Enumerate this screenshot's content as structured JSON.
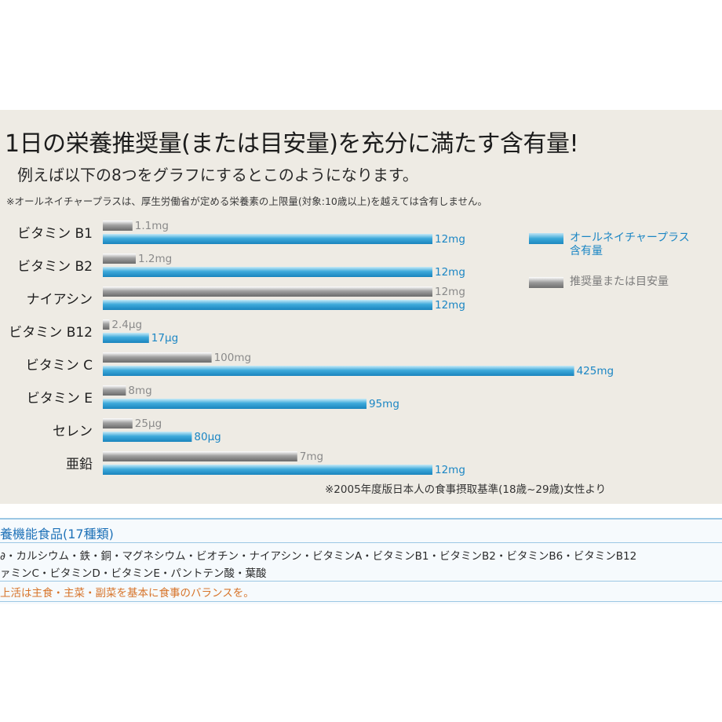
{
  "header": {
    "title": "1日の栄養推奨量(または目安量)を充分に満たす含有量!",
    "subtitle": "例えば以下の8つをグラフにするとこのようになります。",
    "note": "※オールネイチャープラスは、厚生労働省が定める栄養素の上限量(対象:10歳以上)を越えては含有しません。"
  },
  "legend": {
    "blue_label_line1": "オールネイチャープラス",
    "blue_label_line2": "含有量",
    "gray_label": "推奨量または目安量"
  },
  "source_note": "※2005年度版日本人の食事摂取基準(18歳~29歳)女性より",
  "chart_data": {
    "type": "bar",
    "orientation": "horizontal",
    "categories": [
      "ビタミン B1",
      "ビタミン B2",
      "ナイアシン",
      "ビタミン B12",
      "ビタミン C",
      "ビタミン E",
      "セレン",
      "亜鉛"
    ],
    "series": [
      {
        "name": "推奨量または目安量",
        "color": "#8c8c8c",
        "labels": [
          "1.1mg",
          "1.2mg",
          "12mg",
          "2.4μg",
          "100mg",
          "8mg",
          "25μg",
          "7mg"
        ],
        "relative_length": [
          0.09,
          0.1,
          1.0,
          0.02,
          0.33,
          0.07,
          0.09,
          0.59
        ]
      },
      {
        "name": "オールネイチャープラス含有量",
        "color": "#2a9fd6",
        "labels": [
          "12mg",
          "12mg",
          "12mg",
          "17μg",
          "425mg",
          "95mg",
          "80μg",
          "12mg"
        ],
        "relative_length": [
          1.0,
          1.0,
          1.0,
          0.14,
          1.43,
          0.8,
          0.27,
          1.0
        ]
      }
    ]
  },
  "functional_band": {
    "title": "養機能食品(17種類)",
    "line1": "∂・カルシウム・鉄・銅・マグネシウム・ビオチン・ナイアシン・ビタミンA・ビタミンB1・ビタミンB2・ビタミンB6・ビタミンB12",
    "line2": "ァミンC・ビタミンD・ビタミンE・パントテン酸・葉酸",
    "warning": "上活は主食・主菜・副菜を基本に食事のバランスを。"
  }
}
